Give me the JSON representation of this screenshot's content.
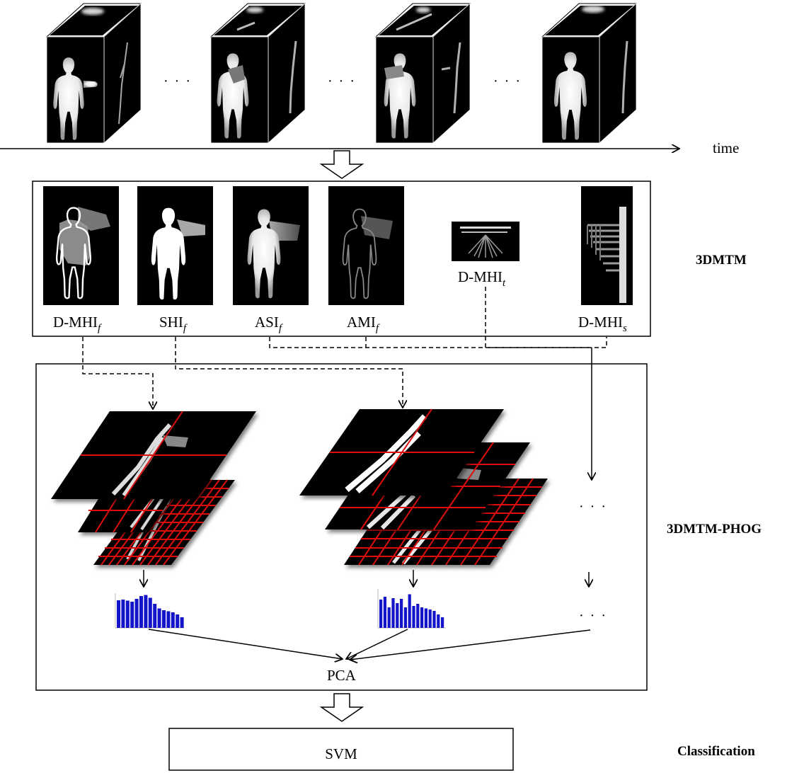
{
  "time_label": "time",
  "sequence_ellipsis": "· · ·",
  "templates": [
    {
      "base": "D-MHI",
      "sub": "f"
    },
    {
      "base": "SHI",
      "sub": "f"
    },
    {
      "base": "ASI",
      "sub": "f"
    },
    {
      "base": "AMI",
      "sub": "f"
    },
    {
      "base": "D-MHI",
      "sub": "t"
    },
    {
      "base": "D-MHI",
      "sub": "s"
    }
  ],
  "sections": {
    "template_stage": "3DMTM",
    "phog_stage": "3DMTM-PHOG",
    "classification_stage": "Classification"
  },
  "phog": {
    "ellipsis": "· · ·",
    "histograms": [
      {
        "values": [
          0.78,
          0.8,
          0.77,
          0.74,
          0.82,
          0.9,
          0.93,
          0.85,
          0.68,
          0.55,
          0.5,
          0.47,
          0.44,
          0.38,
          0.3
        ]
      },
      {
        "values": [
          0.8,
          0.88,
          0.58,
          0.84,
          0.7,
          0.82,
          0.58,
          0.95,
          0.62,
          0.68,
          0.58,
          0.55,
          0.52,
          0.48,
          0.38,
          0.3
        ]
      }
    ],
    "bar_color": "#1414c8",
    "grid_color": "#e01010"
  },
  "pca_label": "PCA",
  "svm_label": "SVM"
}
